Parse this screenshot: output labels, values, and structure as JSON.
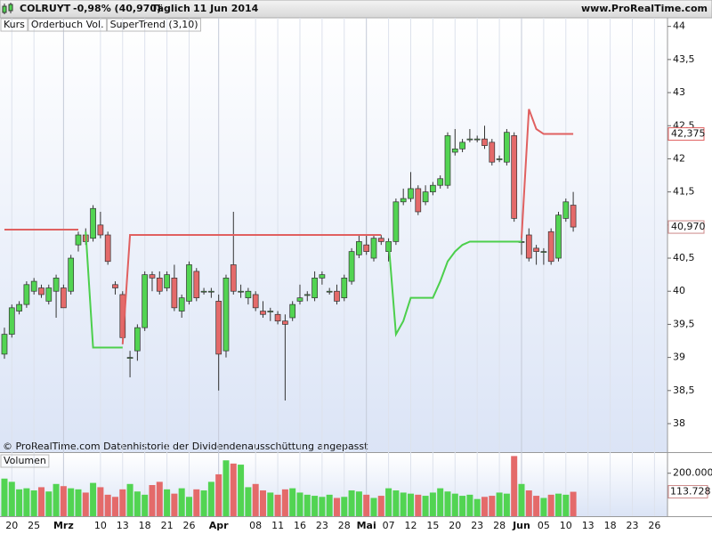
{
  "header": {
    "symbol": "COLRUYT",
    "change": "-0,98% (40,970)",
    "period": "Täglich",
    "date": "11 Jun 2014",
    "site": "www.ProRealTime.com"
  },
  "footer": "© ProRealTime.com  Datenhistorie der Dividendenausschüttung angepasst",
  "chart_data": [
    {
      "type": "candlestick",
      "legend": [
        "Kurs",
        "Orderbuch Vol."
      ],
      "up_color": "#52d452",
      "down_color": "#e46a6a",
      "ylim": [
        37.57,
        44.13
      ],
      "yticks": [
        44,
        {
          "value": 43.5,
          "label": "43,5"
        },
        43,
        {
          "value": 42.5,
          "label": "42,5"
        },
        42,
        {
          "value": 41.5,
          "label": "41,5"
        },
        41,
        {
          "value": 40.5,
          "label": "40,5"
        },
        40,
        {
          "value": 39.5,
          "label": "39,5"
        },
        39,
        {
          "value": 38.5,
          "label": "38,5"
        },
        38
      ],
      "xlim": [
        -0.6,
        89.76
      ],
      "xticks": [
        {
          "value": 1,
          "label": "20"
        },
        {
          "value": 4,
          "label": "25"
        },
        {
          "value": 8,
          "label": "Mrz"
        },
        {
          "value": 13,
          "label": "10"
        },
        {
          "value": 16,
          "label": "13"
        },
        {
          "value": 19,
          "label": "18"
        },
        {
          "value": 22,
          "label": "21"
        },
        {
          "value": 25,
          "label": "26"
        },
        {
          "value": 29,
          "label": "Apr"
        },
        {
          "value": 34,
          "label": "08"
        },
        {
          "value": 37,
          "label": "11"
        },
        {
          "value": 40,
          "label": "16"
        },
        {
          "value": 43,
          "label": "23"
        },
        {
          "value": 46,
          "label": "28"
        },
        {
          "value": 49,
          "label": "Mai"
        },
        {
          "value": 52,
          "label": "07"
        },
        {
          "value": 55,
          "label": "12"
        },
        {
          "value": 58,
          "label": "15"
        },
        {
          "value": 61,
          "label": "20"
        },
        {
          "value": 64,
          "label": "23"
        },
        {
          "value": 67,
          "label": "28"
        },
        {
          "value": 70,
          "label": "Jun"
        },
        {
          "value": 73,
          "label": "05"
        },
        {
          "value": 76,
          "label": "10"
        },
        {
          "value": 79,
          "label": "13"
        },
        {
          "value": 82,
          "label": "18"
        },
        {
          "value": 85,
          "label": "23"
        },
        {
          "value": 88,
          "label": "26"
        }
      ],
      "open": [
        39.05,
        39.35,
        39.7,
        39.8,
        40.0,
        40.05,
        39.85,
        40.0,
        40.05,
        40.0,
        40.7,
        40.85,
        40.8,
        41.0,
        40.85,
        40.1,
        39.95,
        39.0,
        39.1,
        39.45,
        40.25,
        40.2,
        40.05,
        40.2,
        39.7,
        39.85,
        40.3,
        40.0,
        40.0,
        39.85,
        39.1,
        40.4,
        40.0,
        39.9,
        39.95,
        39.7,
        39.7,
        39.65,
        39.55,
        39.6,
        39.85,
        39.95,
        39.9,
        40.2,
        40.0,
        40.0,
        39.9,
        40.15,
        40.55,
        40.7,
        40.5,
        40.8,
        40.6,
        40.75,
        41.35,
        41.4,
        41.55,
        41.35,
        41.5,
        41.6,
        41.6,
        42.1,
        42.15,
        42.3,
        42.3,
        42.3,
        42.25,
        42.0,
        41.95,
        42.35,
        40.75,
        40.85,
        40.65,
        40.6,
        40.9,
        40.5,
        41.1,
        41.3
      ],
      "high": [
        39.45,
        39.8,
        39.85,
        40.15,
        40.2,
        40.1,
        40.1,
        40.25,
        40.1,
        40.55,
        40.9,
        40.95,
        41.3,
        41.2,
        40.9,
        40.15,
        40.0,
        39.1,
        39.5,
        40.3,
        40.3,
        40.3,
        40.3,
        40.4,
        39.95,
        40.45,
        40.35,
        40.05,
        40.05,
        39.95,
        40.25,
        41.2,
        40.1,
        40.05,
        40.0,
        39.85,
        39.75,
        39.7,
        39.65,
        39.85,
        40.1,
        40.0,
        40.3,
        40.3,
        40.05,
        40.1,
        40.25,
        40.65,
        40.85,
        40.85,
        40.85,
        40.85,
        40.8,
        41.4,
        41.55,
        41.8,
        41.6,
        41.6,
        41.65,
        41.75,
        42.4,
        42.45,
        42.3,
        42.45,
        42.35,
        42.5,
        42.3,
        42.05,
        42.45,
        42.4,
        40.85,
        40.95,
        40.7,
        40.65,
        40.95,
        41.2,
        41.4,
        41.5
      ],
      "low": [
        38.98,
        39.3,
        39.65,
        39.75,
        39.95,
        39.9,
        39.8,
        39.6,
        39.75,
        39.95,
        40.6,
        40.7,
        40.75,
        40.8,
        40.4,
        39.95,
        39.2,
        38.7,
        38.95,
        39.4,
        40.0,
        39.95,
        40.0,
        39.7,
        39.6,
        39.8,
        39.85,
        39.95,
        39.9,
        38.5,
        39.0,
        39.95,
        39.9,
        39.8,
        39.7,
        39.6,
        39.55,
        39.5,
        38.35,
        39.55,
        39.8,
        39.85,
        39.85,
        40.1,
        39.95,
        39.8,
        39.85,
        40.1,
        40.5,
        40.55,
        40.45,
        40.7,
        40.45,
        40.7,
        41.3,
        41.35,
        41.15,
        41.3,
        41.45,
        41.55,
        41.55,
        42.05,
        42.1,
        42.25,
        42.25,
        42.15,
        41.9,
        41.95,
        41.9,
        41.05,
        40.55,
        40.45,
        40.4,
        40.4,
        40.4,
        40.45,
        41.05,
        40.9
      ],
      "close": [
        39.35,
        39.75,
        39.8,
        40.1,
        40.15,
        39.95,
        40.05,
        40.2,
        39.75,
        40.5,
        40.85,
        40.75,
        41.25,
        40.85,
        40.45,
        40.05,
        39.3,
        39.0,
        39.45,
        40.25,
        40.2,
        40.0,
        40.25,
        39.75,
        39.9,
        40.4,
        39.9,
        40.0,
        40.0,
        39.05,
        40.2,
        40.0,
        40.0,
        40.0,
        39.75,
        39.65,
        39.7,
        39.55,
        39.5,
        39.8,
        39.9,
        39.95,
        40.2,
        40.25,
        40.0,
        39.85,
        40.2,
        40.6,
        40.75,
        40.6,
        40.8,
        40.75,
        40.75,
        41.35,
        41.4,
        41.55,
        41.2,
        41.5,
        41.6,
        41.7,
        42.35,
        42.15,
        42.25,
        42.3,
        42.3,
        42.2,
        41.95,
        42.0,
        42.4,
        41.1,
        40.75,
        40.5,
        40.6,
        40.6,
        40.45,
        41.15,
        41.35,
        40.97
      ],
      "last_tag": {
        "value": 40.97,
        "label": "40,970"
      },
      "overlays": [
        {
          "name": "SuperTrend (3,10)",
          "bear_color": "#e06060",
          "bull_color": "#4ccf4c",
          "bear_values": [
            40.93,
            40.93,
            40.93,
            40.93,
            40.93,
            40.93,
            40.93,
            40.93,
            40.93,
            40.93,
            40.93,
            null,
            null,
            null,
            null,
            null,
            39.2,
            40.85,
            40.85,
            40.85,
            40.85,
            40.85,
            40.85,
            40.85,
            40.85,
            40.85,
            40.85,
            40.85,
            40.85,
            40.85,
            40.85,
            40.85,
            40.85,
            40.85,
            40.85,
            40.85,
            40.85,
            40.85,
            40.85,
            40.85,
            40.85,
            40.85,
            40.85,
            40.85,
            40.85,
            40.85,
            40.85,
            40.85,
            40.85,
            40.85,
            40.85,
            40.85,
            null,
            null,
            null,
            null,
            null,
            null,
            null,
            null,
            null,
            null,
            null,
            null,
            null,
            null,
            null,
            null,
            null,
            null,
            40.8,
            42.75,
            42.45,
            42.375,
            42.375,
            42.375,
            42.375,
            42.375
          ],
          "bull_values": [
            null,
            null,
            null,
            null,
            null,
            null,
            null,
            null,
            null,
            null,
            null,
            40.9,
            39.15,
            39.15,
            39.15,
            39.15,
            39.15,
            null,
            null,
            null,
            null,
            null,
            null,
            null,
            null,
            null,
            null,
            null,
            null,
            null,
            null,
            null,
            null,
            null,
            null,
            null,
            null,
            null,
            null,
            null,
            null,
            null,
            null,
            null,
            null,
            null,
            null,
            null,
            null,
            null,
            null,
            null,
            40.75,
            39.35,
            39.55,
            39.9,
            39.9,
            39.9,
            39.9,
            40.15,
            40.45,
            40.6,
            40.7,
            40.75,
            40.75,
            40.75,
            40.75,
            40.75,
            40.75,
            40.75,
            40.75,
            null,
            null,
            null,
            null,
            null,
            null,
            null
          ],
          "last_tag": {
            "value": 42.375,
            "label": "42,375"
          }
        }
      ]
    },
    {
      "type": "bar",
      "title": "Volumen",
      "ylim": [
        0,
        290000
      ],
      "yticks": [
        {
          "value": 200000,
          "label": "200.000"
        }
      ],
      "values": [
        175000,
        160000,
        125000,
        130000,
        120000,
        135000,
        115000,
        150000,
        140000,
        130000,
        125000,
        110000,
        155000,
        135000,
        100000,
        90000,
        125000,
        150000,
        115000,
        100000,
        145000,
        160000,
        125000,
        105000,
        130000,
        90000,
        125000,
        120000,
        160000,
        195000,
        260000,
        245000,
        240000,
        135000,
        150000,
        120000,
        110000,
        100000,
        125000,
        130000,
        110000,
        100000,
        95000,
        90000,
        100000,
        85000,
        90000,
        120000,
        115000,
        100000,
        85000,
        95000,
        130000,
        120000,
        110000,
        105000,
        100000,
        95000,
        110000,
        130000,
        115000,
        105000,
        95000,
        100000,
        80000,
        90000,
        95000,
        110000,
        105000,
        280000,
        150000,
        120000,
        95000,
        85000,
        100000,
        105000,
        100000,
        113728
      ],
      "last_tag": {
        "value": 113728,
        "label": "113.728"
      }
    }
  ]
}
